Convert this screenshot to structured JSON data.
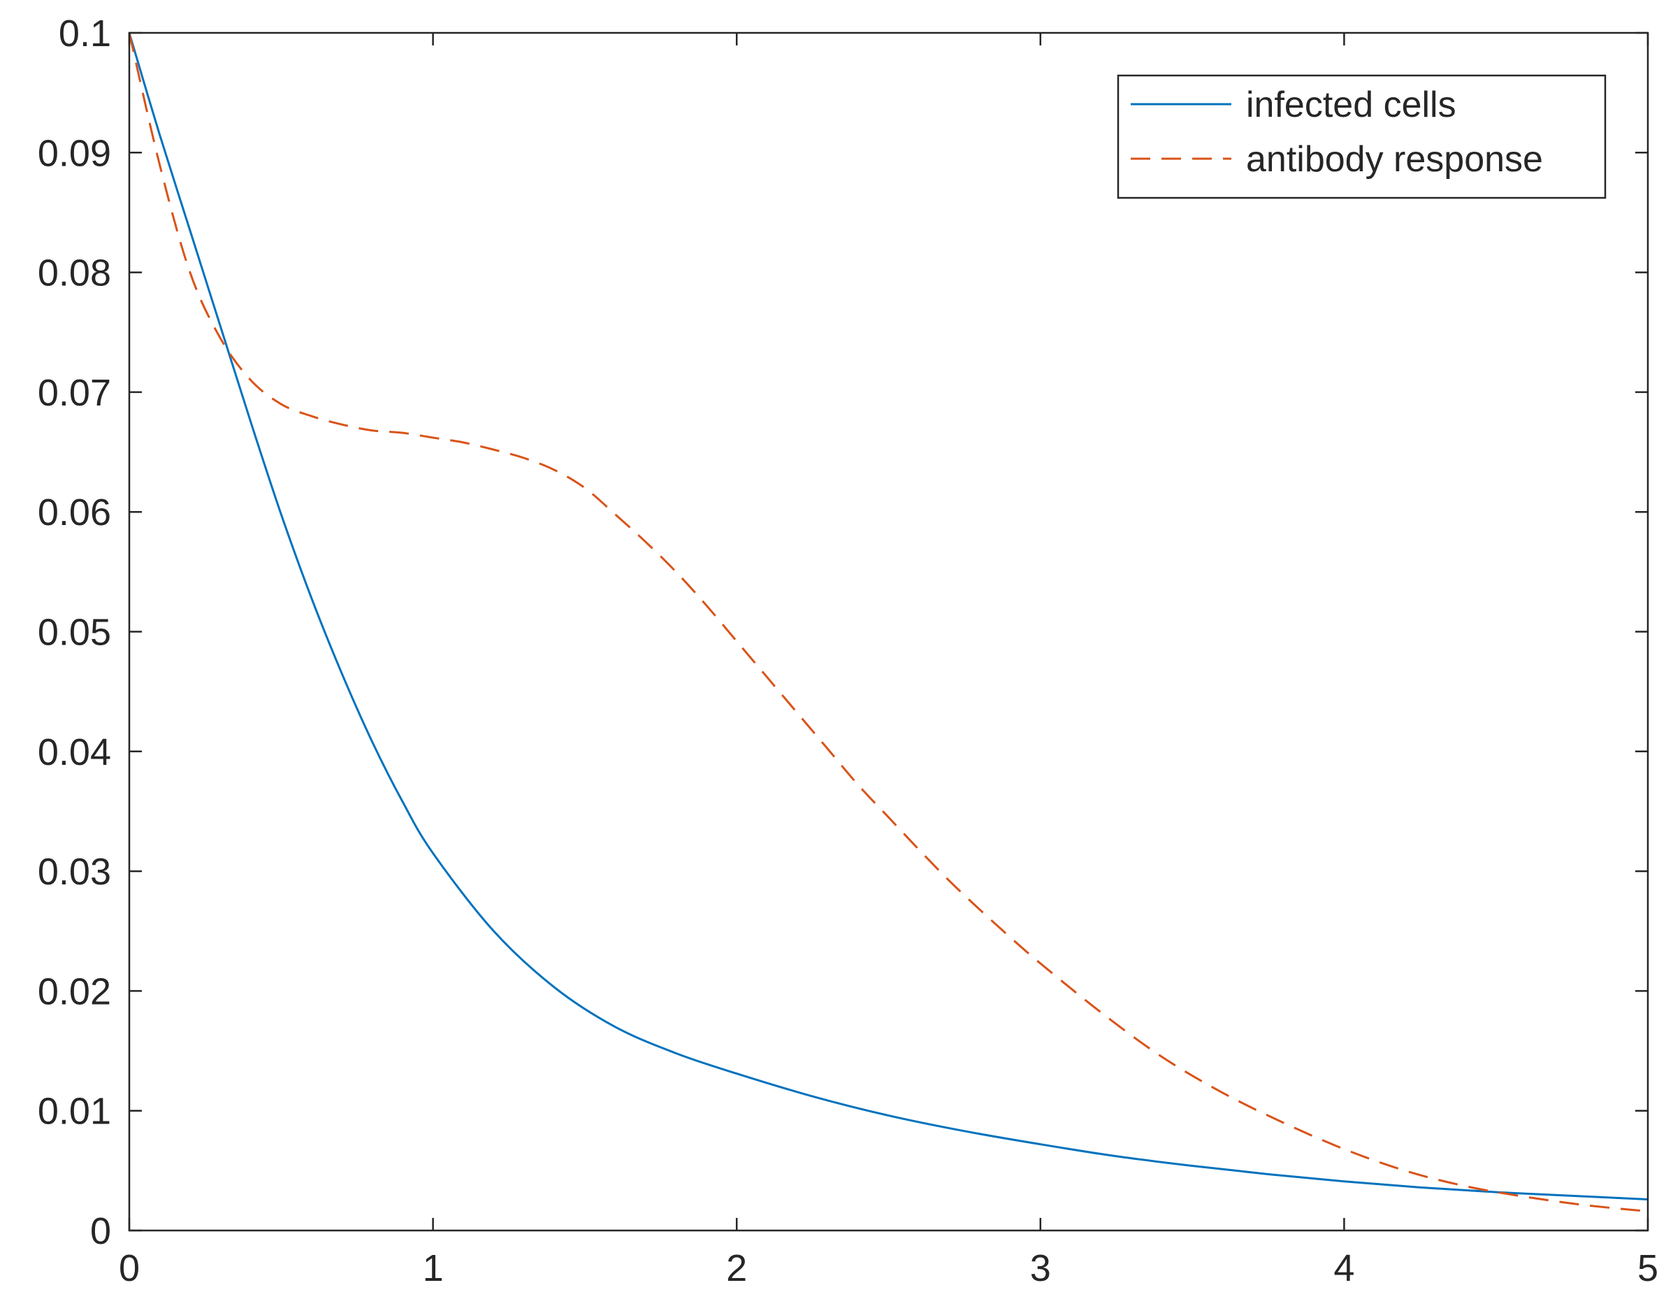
{
  "chart_data": {
    "type": "line",
    "title": "",
    "xlabel": "",
    "ylabel": "",
    "xlim": [
      0,
      5
    ],
    "ylim": [
      0,
      0.1
    ],
    "x_ticks": [
      0,
      1,
      2,
      3,
      4,
      5
    ],
    "x_tick_labels": [
      "0",
      "1",
      "2",
      "3",
      "4",
      "5"
    ],
    "y_ticks": [
      0,
      0.01,
      0.02,
      0.03,
      0.04,
      0.05,
      0.06,
      0.07,
      0.08,
      0.09,
      0.1
    ],
    "y_tick_labels": [
      "0",
      "0.01",
      "0.02",
      "0.03",
      "0.04",
      "0.05",
      "0.06",
      "0.07",
      "0.08",
      "0.09",
      "0.1"
    ],
    "grid": false,
    "legend": {
      "placement": "top-right",
      "entries": [
        "infected cells",
        "antibody response"
      ]
    },
    "series": [
      {
        "name": "infected cells",
        "style": "solid",
        "color": "#0072BD",
        "x": [
          0,
          0.1,
          0.2,
          0.3,
          0.4,
          0.5,
          0.6,
          0.7,
          0.8,
          0.9,
          1.0,
          1.2,
          1.4,
          1.6,
          1.8,
          2.0,
          2.25,
          2.5,
          2.75,
          3.0,
          3.25,
          3.5,
          3.75,
          4.0,
          4.25,
          4.5,
          4.75,
          5.0
        ],
        "y": [
          0.1,
          0.0915,
          0.0835,
          0.0755,
          0.0675,
          0.0598,
          0.0528,
          0.0465,
          0.0408,
          0.0358,
          0.0315,
          0.025,
          0.0203,
          0.017,
          0.0148,
          0.0131,
          0.0112,
          0.0096,
          0.0083,
          0.0072,
          0.0062,
          0.0054,
          0.0047,
          0.0041,
          0.0036,
          0.0032,
          0.0029,
          0.0026
        ]
      },
      {
        "name": "antibody response",
        "style": "dashed",
        "color": "#D95319",
        "x": [
          0,
          0.1,
          0.2,
          0.3,
          0.4,
          0.5,
          0.6,
          0.7,
          0.8,
          0.9,
          1.0,
          1.1,
          1.2,
          1.3,
          1.4,
          1.5,
          1.6,
          1.7,
          1.8,
          1.9,
          2.0,
          2.1,
          2.2,
          2.3,
          2.4,
          2.5,
          2.6,
          2.7,
          2.8,
          2.9,
          3.0,
          3.2,
          3.4,
          3.6,
          3.8,
          4.0,
          4.2,
          4.4,
          4.6,
          4.8,
          5.0
        ],
        "y": [
          0.1,
          0.089,
          0.08,
          0.0745,
          0.071,
          0.069,
          0.068,
          0.0673,
          0.0668,
          0.0666,
          0.0662,
          0.0658,
          0.0652,
          0.0645,
          0.0635,
          0.062,
          0.0598,
          0.0575,
          0.055,
          0.0522,
          0.0492,
          0.0462,
          0.0432,
          0.0402,
          0.0372,
          0.0345,
          0.0318,
          0.0292,
          0.0268,
          0.0245,
          0.0223,
          0.0182,
          0.0145,
          0.0115,
          0.009,
          0.0068,
          0.005,
          0.0037,
          0.0028,
          0.0021,
          0.0016
        ]
      }
    ]
  }
}
